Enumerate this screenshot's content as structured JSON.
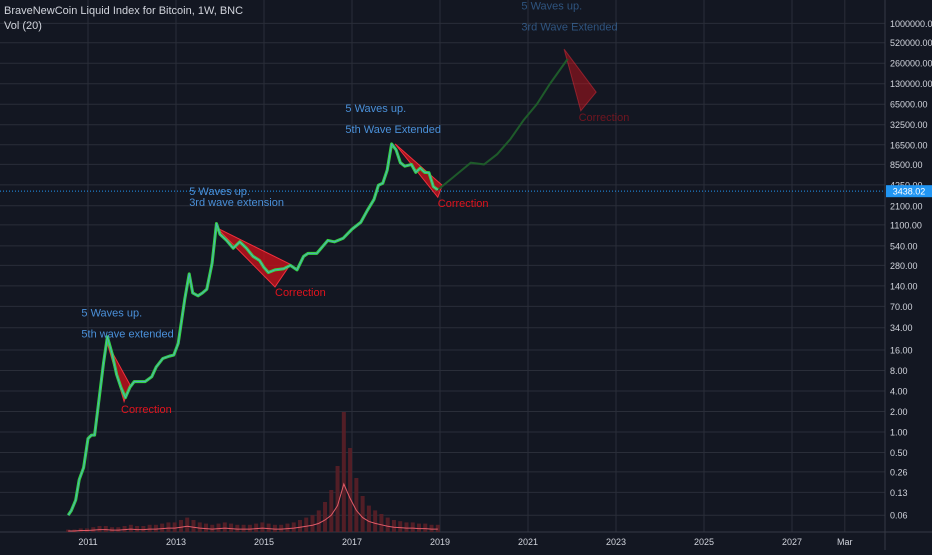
{
  "header": {
    "symbol_line": "BraveNewCoin Liquid Index for Bitcoin, 1W, BNC",
    "volume_line": "Vol (20)"
  },
  "price_tag": "3438.02",
  "colors": {
    "background": "#131722",
    "grid": "#2a2e39",
    "price_line": "#36d445",
    "price_thin": "#5b9cf6",
    "projection": "#1e5a2a",
    "correction_fill": "#d0121b",
    "correction_label": "#e0141e",
    "wave_label": "#4a90d9",
    "axis_text": "#d1d4dc",
    "price_tag_bg": "#2196f3",
    "volume_bar": "#5a1f27",
    "volume_ma": "#e05b68"
  },
  "chart_data": {
    "type": "line",
    "title": "BraveNewCoin Liquid Index for Bitcoin, 1W, BNC",
    "y_scale": "log",
    "y_ticks": [
      "1000000.00",
      "520000.00",
      "260000.00",
      "130000.00",
      "65000.00",
      "32500.00",
      "16500.00",
      "8500.00",
      "4250.00",
      "2100.00",
      "1100.00",
      "540.00",
      "280.00",
      "140.00",
      "70.00",
      "34.00",
      "16.00",
      "8.00",
      "4.00",
      "2.00",
      "1.00",
      "0.50",
      "0.26",
      "0.13",
      "0.06"
    ],
    "x_ticks": [
      "2011",
      "2013",
      "2015",
      "2017",
      "2019",
      "2021",
      "2023",
      "2025",
      "2027",
      "Mar"
    ],
    "grid": true,
    "series": [
      {
        "role": "price",
        "points": [
          [
            2010.55,
            0.06
          ],
          [
            2010.62,
            0.07
          ],
          [
            2010.72,
            0.1
          ],
          [
            2010.8,
            0.2
          ],
          [
            2010.9,
            0.3
          ],
          [
            2011.0,
            0.8
          ],
          [
            2011.08,
            0.9
          ],
          [
            2011.15,
            0.9
          ],
          [
            2011.25,
            3.0
          ],
          [
            2011.35,
            10
          ],
          [
            2011.44,
            25
          ],
          [
            2011.55,
            14
          ],
          [
            2011.65,
            7
          ],
          [
            2011.75,
            4.5
          ],
          [
            2011.85,
            3.2
          ],
          [
            2011.95,
            4.5
          ],
          [
            2012.05,
            5.5
          ],
          [
            2012.15,
            5.5
          ],
          [
            2012.3,
            5.5
          ],
          [
            2012.45,
            6.5
          ],
          [
            2012.55,
            9
          ],
          [
            2012.7,
            12
          ],
          [
            2012.85,
            13
          ],
          [
            2012.95,
            13.5
          ],
          [
            2013.05,
            20
          ],
          [
            2013.2,
            90
          ],
          [
            2013.3,
            210
          ],
          [
            2013.38,
            110
          ],
          [
            2013.5,
            100
          ],
          [
            2013.6,
            110
          ],
          [
            2013.7,
            125
          ],
          [
            2013.82,
            300
          ],
          [
            2013.92,
            1150
          ],
          [
            2014.0,
            800
          ],
          [
            2014.15,
            650
          ],
          [
            2014.3,
            500
          ],
          [
            2014.45,
            620
          ],
          [
            2014.6,
            500
          ],
          [
            2014.75,
            380
          ],
          [
            2014.9,
            330
          ],
          [
            2015.0,
            260
          ],
          [
            2015.1,
            220
          ],
          [
            2015.25,
            240
          ],
          [
            2015.45,
            250
          ],
          [
            2015.6,
            280
          ],
          [
            2015.75,
            240
          ],
          [
            2015.9,
            380
          ],
          [
            2016.0,
            420
          ],
          [
            2016.2,
            420
          ],
          [
            2016.45,
            650
          ],
          [
            2016.6,
            620
          ],
          [
            2016.8,
            700
          ],
          [
            2017.0,
            950
          ],
          [
            2017.2,
            1200
          ],
          [
            2017.35,
            1800
          ],
          [
            2017.5,
            2600
          ],
          [
            2017.6,
            4200
          ],
          [
            2017.7,
            4500
          ],
          [
            2017.8,
            7000
          ],
          [
            2017.9,
            17000
          ],
          [
            2018.0,
            14000
          ],
          [
            2018.1,
            9000
          ],
          [
            2018.2,
            8000
          ],
          [
            2018.35,
            8500
          ],
          [
            2018.45,
            6500
          ],
          [
            2018.55,
            7500
          ],
          [
            2018.65,
            6500
          ],
          [
            2018.75,
            6400
          ],
          [
            2018.85,
            4000
          ],
          [
            2018.95,
            3600
          ]
        ]
      },
      {
        "role": "projection",
        "points": [
          [
            2018.95,
            3600
          ],
          [
            2019.3,
            5500
          ],
          [
            2019.7,
            9000
          ],
          [
            2020.0,
            8500
          ],
          [
            2020.3,
            12000
          ],
          [
            2020.6,
            20000
          ],
          [
            2020.9,
            38000
          ],
          [
            2021.2,
            65000
          ],
          [
            2021.5,
            130000
          ],
          [
            2021.9,
            300000
          ]
        ]
      }
    ],
    "corrections": [
      {
        "label": "Correction",
        "top": [
          2011.44,
          20
        ],
        "bottom": [
          2011.82,
          2.8
        ],
        "right": [
          2011.95,
          5.0
        ],
        "label_at": [
          2011.75,
          1.9
        ]
      },
      {
        "label": "Correction",
        "top": [
          2013.92,
          1000
        ],
        "bottom": [
          2015.25,
          135
        ],
        "right": [
          2015.6,
          290
        ],
        "label_at": [
          2015.25,
          100
        ]
      },
      {
        "label": "Correction",
        "top": [
          2017.98,
          17000
        ],
        "bottom": [
          2018.95,
          2800
        ],
        "right": [
          2019.05,
          4200
        ],
        "label_at": [
          2018.95,
          2000
        ]
      },
      {
        "label": "Correction",
        "top": [
          2021.82,
          420000
        ],
        "bottom": [
          2022.2,
          52000
        ],
        "right": [
          2022.55,
          98000
        ],
        "label_at": [
          2022.15,
          37000
        ],
        "faded": true
      }
    ],
    "annotations": [
      {
        "lines": [
          "5 Waves up.",
          "  5th wave extended"
        ],
        "at": [
          2010.85,
          50
        ]
      },
      {
        "lines": [
          "5 Waves up.",
          "3rd wave extension"
        ],
        "at": [
          2013.3,
          3000
        ]
      },
      {
        "lines": [
          "5 Waves up.",
          "5th Wave Extended"
        ],
        "at": [
          2016.85,
          50000
        ]
      },
      {
        "lines": [
          "5 Waves up.",
          "3rd Wave Extended"
        ],
        "at": [
          2020.85,
          1600000
        ],
        "faded": true
      }
    ],
    "current_price": 3438.02,
    "volume": [
      0.02,
      0.02,
      0.03,
      0.03,
      0.04,
      0.05,
      0.05,
      0.04,
      0.04,
      0.05,
      0.06,
      0.05,
      0.05,
      0.06,
      0.06,
      0.07,
      0.08,
      0.08,
      0.1,
      0.12,
      0.1,
      0.08,
      0.07,
      0.06,
      0.07,
      0.08,
      0.07,
      0.06,
      0.06,
      0.06,
      0.07,
      0.08,
      0.07,
      0.06,
      0.06,
      0.07,
      0.08,
      0.1,
      0.12,
      0.14,
      0.18,
      0.25,
      0.35,
      0.55,
      1.0,
      0.7,
      0.45,
      0.3,
      0.22,
      0.18,
      0.15,
      0.12,
      0.1,
      0.09,
      0.08,
      0.08,
      0.07,
      0.07,
      0.06,
      0.06
    ]
  }
}
